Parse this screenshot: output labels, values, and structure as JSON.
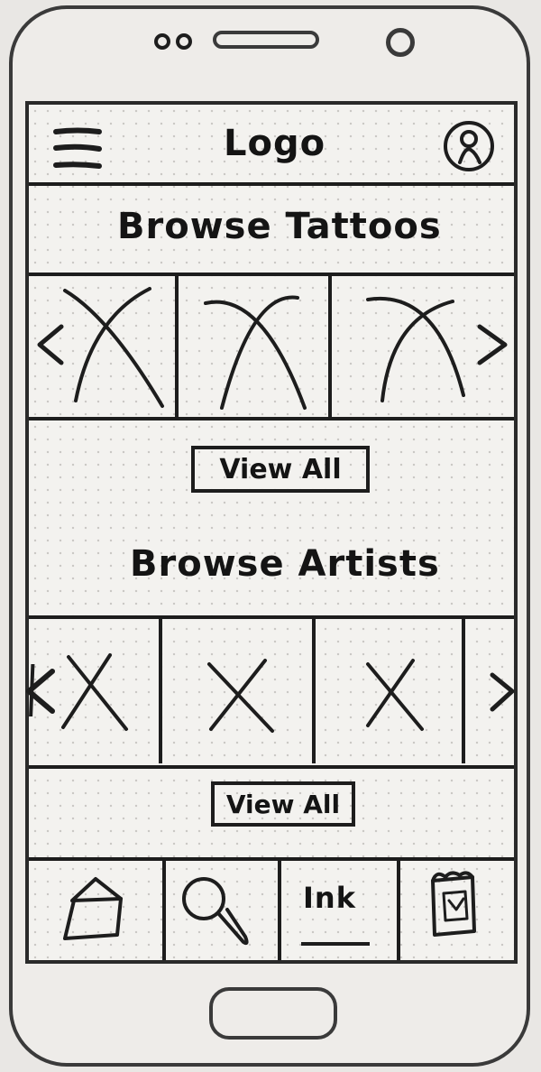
{
  "header": {
    "logo_text": "Logo",
    "menu_icon": "hamburger-menu-icon",
    "profile_icon": "user-profile-icon"
  },
  "tattoos": {
    "heading": "Browse Tattoos",
    "view_all_label": "View All",
    "image_count": 3
  },
  "artists": {
    "heading": "Browse Artists",
    "view_all_label": "View All",
    "image_count": 3
  },
  "bottom_nav": {
    "home_icon": "home-icon",
    "search_icon": "search-icon",
    "ink_label": "Ink",
    "calendar_icon": "calendar-icon"
  }
}
